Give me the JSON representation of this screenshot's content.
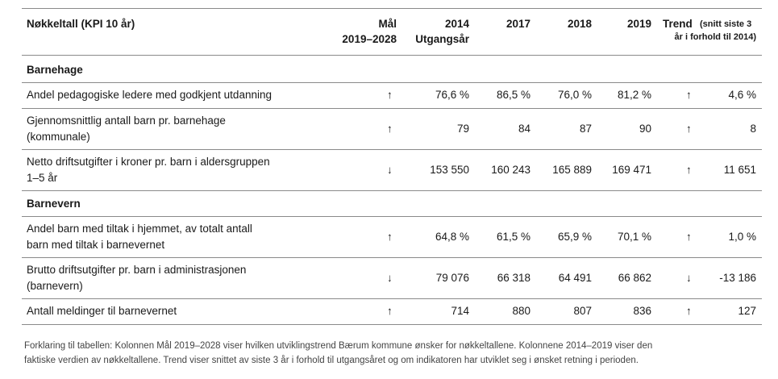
{
  "table": {
    "header": {
      "indicator": "Nøkkeltall (KPI 10 år)",
      "goal": [
        "Mål",
        "2019–2028"
      ],
      "y2014": [
        "2014",
        "Utgangsår"
      ],
      "y2017": "2017",
      "y2018": "2018",
      "y2019": "2019",
      "trend": "Trend",
      "trend_note": [
        "(snitt siste 3",
        "år i forhold til 2014)"
      ]
    },
    "sections": [
      {
        "title": "Barnehage",
        "rows": [
          {
            "label": [
              "Andel pedagogiske ledere med godkjent utdanning"
            ],
            "goal": "↑",
            "values": [
              "76,6 %",
              "86,5 %",
              "76,0 %",
              "81,2 %"
            ],
            "trend_arrow": "↑",
            "trend": "4,6 %"
          },
          {
            "label": [
              "Gjennomsnittlig antall barn pr. barnehage",
              "(kommunale)"
            ],
            "goal": "↑",
            "values": [
              "79",
              "84",
              "87",
              "90"
            ],
            "trend_arrow": "↑",
            "trend": "8"
          },
          {
            "label": [
              "Netto driftsutgifter i kroner pr. barn i aldersgruppen",
              "1–5 år"
            ],
            "goal": "↓",
            "values": [
              "153 550",
              "160 243",
              "165 889",
              "169 471"
            ],
            "trend_arrow": "↑",
            "trend": "11 651"
          }
        ]
      },
      {
        "title": "Barnevern",
        "rows": [
          {
            "label": [
              "Andel barn med tiltak i hjemmet, av totalt antall",
              "barn med tiltak i barnevernet"
            ],
            "goal": "↑",
            "values": [
              "64,8 %",
              "61,5 %",
              "65,9 %",
              "70,1 %"
            ],
            "trend_arrow": "↑",
            "trend": "1,0 %"
          },
          {
            "label": [
              "Brutto driftsutgifter pr. barn i administrasjonen",
              "(barnevern)"
            ],
            "goal": "↓",
            "values": [
              "79 076",
              "66 318",
              "64 491",
              "66 862"
            ],
            "trend_arrow": "↓",
            "trend": "-13 186"
          },
          {
            "label": [
              "Antall meldinger til barnevernet"
            ],
            "goal": "↑",
            "values": [
              "714",
              "880",
              "807",
              "836"
            ],
            "trend_arrow": "↑",
            "trend": "127"
          }
        ]
      }
    ]
  },
  "footnote": [
    "Forklaring til tabellen: Kolonnen Mål 2019–2028 viser hvilken utviklingstrend Bærum kommune ønsker for nøkkeltallene. Kolonnene 2014–2019 viser den",
    "faktiske verdien av nøkkeltallene. Trend viser snittet av siste 3 år i forhold til utgangsåret og om indikatoren har utviklet seg i ønsket retning i perioden."
  ]
}
